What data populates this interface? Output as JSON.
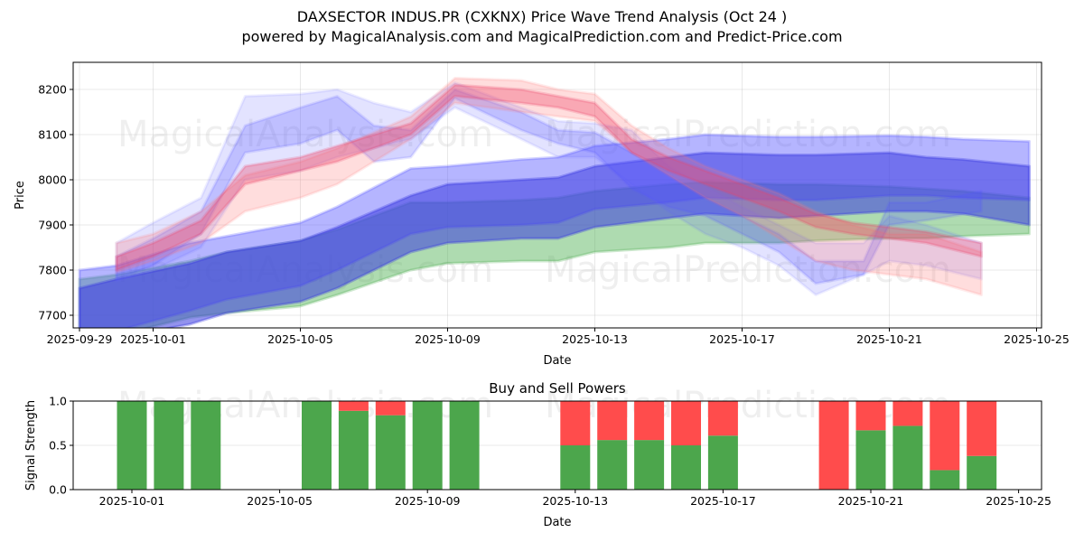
{
  "header": {
    "title": "DAXSECTOR INDUS.PR (CXKNX) Price Wave Trend Analysis (Oct 24 )",
    "subtitle": "powered by MagicalAnalysis.com and MagicalPrediction.com and Predict-Price.com"
  },
  "watermarks": [
    "MagicalAnalysis.com",
    "MagicalPrediction.com"
  ],
  "chart_data": [
    {
      "type": "area",
      "title": "",
      "xlabel": "Date",
      "ylabel": "Price",
      "ylim": [
        7672,
        8260
      ],
      "xlim": [
        "2025-09-28.85",
        "2025-10-25.2"
      ],
      "grid": true,
      "yticks": [
        7700,
        7800,
        7900,
        8000,
        8100,
        8200
      ],
      "xticks": [
        "2025-09-29",
        "2025-10-01",
        "2025-10-05",
        "2025-10-09",
        "2025-10-13",
        "2025-10-17",
        "2025-10-21",
        "2025-10-25"
      ],
      "series": [
        {
          "name": "green-band",
          "color": "#4caf50",
          "opacity": 0.45,
          "x": [
            0,
            1,
            3,
            4,
            6,
            7,
            9,
            10,
            12,
            13,
            14,
            16,
            17,
            19,
            20,
            22,
            23,
            24,
            25.8
          ],
          "upper": [
            7780,
            7790,
            7820,
            7840,
            7865,
            7890,
            7950,
            7950,
            7955,
            7960,
            7975,
            7990,
            7995,
            7990,
            7990,
            7985,
            7980,
            7975,
            7960
          ],
          "lower": [
            7645,
            7655,
            7695,
            7705,
            7720,
            7745,
            7800,
            7815,
            7820,
            7820,
            7840,
            7850,
            7860,
            7860,
            7865,
            7870,
            7870,
            7875,
            7880
          ]
        },
        {
          "name": "blue-band-outer",
          "color": "#5c5cff",
          "opacity": 0.45,
          "x": [
            0,
            1,
            3,
            4,
            6,
            7,
            9,
            10,
            12,
            13,
            14,
            16,
            17,
            19,
            20,
            22,
            23,
            24,
            25.8
          ],
          "upper": [
            7800,
            7810,
            7860,
            7875,
            7905,
            7940,
            8025,
            8030,
            8045,
            8050,
            8075,
            8090,
            8100,
            8095,
            8095,
            8098,
            8095,
            8090,
            8085
          ],
          "lower": [
            7650,
            7665,
            7710,
            7735,
            7765,
            7800,
            7880,
            7895,
            7900,
            7905,
            7935,
            7950,
            7960,
            7955,
            7955,
            7965,
            7965,
            7960,
            7955
          ]
        },
        {
          "name": "blue-band-inner",
          "color": "#3a3ae0",
          "opacity": 0.55,
          "x": [
            0,
            1,
            3,
            4,
            6,
            7,
            9,
            10,
            12,
            13,
            14,
            16,
            17,
            19,
            20,
            22,
            23,
            24,
            25.8
          ],
          "upper": [
            7760,
            7780,
            7815,
            7840,
            7865,
            7895,
            7965,
            7990,
            8000,
            8005,
            8030,
            8050,
            8060,
            8055,
            8055,
            8060,
            8050,
            8045,
            8030
          ],
          "lower": [
            7640,
            7650,
            7680,
            7705,
            7730,
            7760,
            7840,
            7860,
            7870,
            7870,
            7895,
            7915,
            7925,
            7915,
            7920,
            7930,
            7930,
            7925,
            7900
          ]
        },
        {
          "name": "blue-wave-light",
          "color": "#6666ff",
          "opacity": 0.18,
          "x": [
            1,
            2,
            3.3,
            4.5,
            6,
            7,
            8,
            9,
            10.2,
            12,
            13,
            14,
            15,
            16,
            17,
            18,
            19,
            20,
            21.3,
            22,
            23,
            24.5
          ],
          "upper": [
            7860,
            7905,
            7960,
            8185,
            8190,
            8200,
            8170,
            8150,
            8215,
            8160,
            8130,
            8125,
            8110,
            8030,
            7985,
            7940,
            7900,
            7860,
            7860,
            7920,
            7900,
            7860
          ],
          "lower": [
            7775,
            7800,
            7850,
            8000,
            8020,
            8050,
            8070,
            8090,
            8160,
            8090,
            8050,
            8050,
            7990,
            7930,
            7880,
            7850,
            7810,
            7745,
            7790,
            7820,
            7810,
            7780
          ]
        },
        {
          "name": "blue-wave-mid",
          "color": "#5555ff",
          "opacity": 0.25,
          "x": [
            1,
            2,
            3.3,
            4.5,
            6,
            7,
            8,
            9,
            10.2,
            12,
            13,
            14,
            15,
            16,
            17,
            18,
            19,
            20,
            21.3,
            22,
            23,
            24.5
          ],
          "upper": [
            7830,
            7870,
            7930,
            8120,
            8160,
            8185,
            8120,
            8110,
            8200,
            8150,
            8110,
            8105,
            8060,
            8010,
            7960,
            7920,
            7880,
            7820,
            7820,
            7950,
            7950,
            7975
          ],
          "lower": [
            7780,
            7810,
            7880,
            8060,
            8080,
            8110,
            8040,
            8050,
            8180,
            8110,
            8080,
            8060,
            7980,
            7940,
            7920,
            7880,
            7840,
            7770,
            7790,
            7900,
            7910,
            7930
          ]
        },
        {
          "name": "red-wave-light",
          "color": "#ff7777",
          "opacity": 0.25,
          "x": [
            1,
            2,
            3.3,
            4.5,
            6,
            7,
            8,
            9,
            10.2,
            12,
            13,
            14,
            15,
            16,
            17,
            18,
            19,
            20,
            21,
            22,
            23,
            24.5
          ],
          "upper": [
            7860,
            7880,
            7930,
            8010,
            8040,
            8070,
            8105,
            8140,
            8225,
            8220,
            8200,
            8190,
            8120,
            8070,
            8030,
            8000,
            7970,
            7930,
            7900,
            7880,
            7880,
            7840
          ],
          "lower": [
            7795,
            7820,
            7860,
            7930,
            7960,
            7990,
            8040,
            8090,
            8170,
            8150,
            8140,
            8130,
            8060,
            8010,
            7960,
            7920,
            7870,
            7820,
            7800,
            7790,
            7780,
            7745
          ]
        },
        {
          "name": "red-wave-dark",
          "color": "#ee4466",
          "opacity": 0.35,
          "x": [
            1,
            2,
            3.3,
            4.5,
            6,
            7,
            8,
            9,
            10.2,
            12,
            13,
            14,
            15,
            16,
            17,
            18,
            19,
            20,
            21,
            22,
            23,
            24.5
          ],
          "upper": [
            7830,
            7860,
            7910,
            8030,
            8050,
            8075,
            8100,
            8125,
            8210,
            8200,
            8185,
            8170,
            8090,
            8050,
            8020,
            7990,
            7960,
            7925,
            7905,
            7895,
            7885,
            7860
          ],
          "lower": [
            7800,
            7830,
            7880,
            7990,
            8020,
            8040,
            8070,
            8100,
            8185,
            8170,
            8160,
            8140,
            8060,
            8020,
            7990,
            7960,
            7930,
            7895,
            7880,
            7870,
            7860,
            7830
          ]
        }
      ]
    },
    {
      "type": "bar",
      "title": "Buy and Sell Powers",
      "xlabel": "Date",
      "ylabel": "Signal Strength",
      "ylim": [
        0,
        1
      ],
      "yticks": [
        "0.0",
        "0.5",
        "1.0"
      ],
      "xticks": [
        "2025-10-01",
        "2025-10-05",
        "2025-10-09",
        "2025-10-13",
        "2025-10-17",
        "2025-10-21",
        "2025-10-25"
      ],
      "grid": true,
      "categories": [
        "2025-10-01",
        "2025-10-02",
        "2025-10-03",
        "2025-10-06",
        "2025-10-07",
        "2025-10-08",
        "2025-10-09",
        "2025-10-10",
        "2025-10-13",
        "2025-10-14",
        "2025-10-15",
        "2025-10-16",
        "2025-10-17",
        "2025-10-20",
        "2025-10-21",
        "2025-10-22",
        "2025-10-23",
        "2025-10-24"
      ],
      "series": [
        {
          "name": "Buy",
          "color": "#4ca64c",
          "values": [
            1.0,
            1.0,
            1.0,
            1.0,
            0.89,
            0.84,
            1.0,
            1.0,
            0.5,
            0.56,
            0.56,
            0.5,
            0.61,
            0.0,
            0.67,
            0.72,
            0.22,
            0.38
          ]
        },
        {
          "name": "Sell",
          "color": "#ff4c4c",
          "values": [
            0.0,
            0.0,
            0.0,
            0.0,
            0.11,
            0.16,
            0.0,
            0.0,
            0.5,
            0.44,
            0.44,
            0.5,
            0.39,
            1.0,
            0.33,
            0.28,
            0.78,
            0.62
          ]
        }
      ]
    }
  ]
}
